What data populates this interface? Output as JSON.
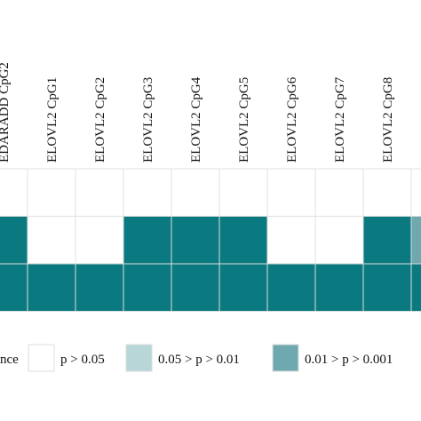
{
  "columns": [
    "EDARADD CpG2",
    "ELOVL2 CpG1",
    "ELOVL2 CpG2",
    "ELOVL2 CpG3",
    "ELOVL2 CpG4",
    "ELOVL2 CpG5",
    "ELOVL2 CpG6",
    "ELOVL2 CpG7",
    "ELOVL2 CpG8",
    null
  ],
  "levels": [
    {
      "color": "#ffffff",
      "label": "p > 0.05"
    },
    {
      "color": "#b8d6d8",
      "label": "0.05 > p > 0.01"
    },
    {
      "color": "#6fa8ae",
      "label": "0.01 > p > 0.001"
    },
    {
      "color": "#0b7a80"
    }
  ],
  "rows": [
    [
      0,
      0,
      0,
      0,
      0,
      0,
      0,
      0,
      0,
      0
    ],
    [
      3,
      0,
      0,
      3,
      3,
      3,
      0,
      0,
      3,
      2
    ],
    [
      3,
      3,
      3,
      3,
      3,
      3,
      3,
      3,
      3,
      3
    ]
  ],
  "legend": {
    "title": "nce"
  }
}
